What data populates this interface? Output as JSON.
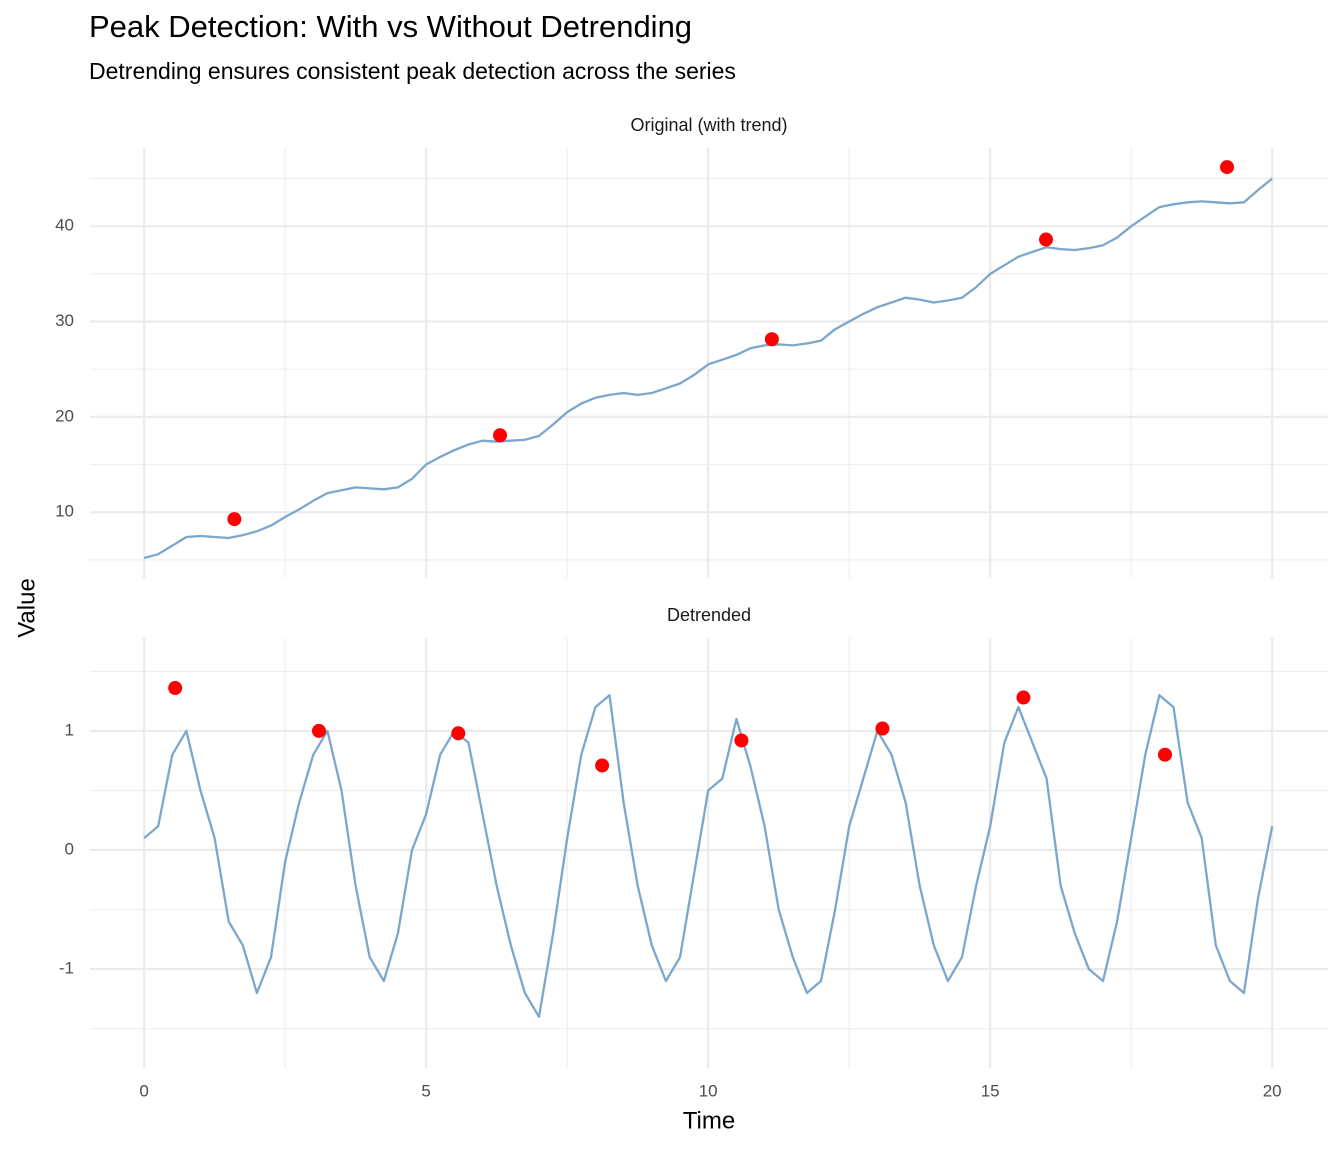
{
  "chart_data": {
    "type": "line",
    "title": "Peak Detection: With vs Without Detrending",
    "subtitle": "Detrending ensures consistent peak detection across the series",
    "xlabel": "Time",
    "ylabel": "Value",
    "xlim": [
      -0.96,
      20.99
    ],
    "xticks": [
      0,
      5,
      10,
      15,
      20
    ],
    "grid": true,
    "x": [
      0,
      0.25,
      0.5,
      0.75,
      1,
      1.25,
      1.5,
      1.75,
      2,
      2.25,
      2.5,
      2.75,
      3,
      3.25,
      3.5,
      3.75,
      4,
      4.25,
      4.5,
      4.75,
      5,
      5.25,
      5.5,
      5.75,
      6,
      6.25,
      6.5,
      6.75,
      7,
      7.25,
      7.5,
      7.75,
      8,
      8.25,
      8.5,
      8.75,
      9,
      9.25,
      9.5,
      9.75,
      10,
      10.25,
      10.5,
      10.75,
      11,
      11.25,
      11.5,
      11.75,
      12,
      12.25,
      12.5,
      12.75,
      13,
      13.25,
      13.5,
      13.75,
      14,
      14.25,
      14.5,
      14.75,
      15,
      15.25,
      15.5,
      15.75,
      16,
      16.25,
      16.5,
      16.75,
      17,
      17.25,
      17.5,
      17.75,
      18,
      18.25,
      18.5,
      18.75,
      19,
      19.25,
      19.5,
      19.75,
      20
    ],
    "panels": [
      {
        "title": "Original (with trend)",
        "color": "#7ba7cc",
        "ylim": [
          3.1,
          48.2
        ],
        "yticks": [
          10,
          20,
          30,
          40
        ],
        "values": [
          5.2,
          5.6,
          6.5,
          7.4,
          7.5,
          7.4,
          7.3,
          7.6,
          8.0,
          8.6,
          9.5,
          10.3,
          11.2,
          12.0,
          12.3,
          12.6,
          12.5,
          12.4,
          12.6,
          13.5,
          15.0,
          15.8,
          16.5,
          17.1,
          17.5,
          17.4,
          17.5,
          17.6,
          18.0,
          19.2,
          20.5,
          21.4,
          22.0,
          22.3,
          22.5,
          22.3,
          22.5,
          23.0,
          23.5,
          24.4,
          25.5,
          26.0,
          26.5,
          27.2,
          27.5,
          27.6,
          27.5,
          27.7,
          28.0,
          29.2,
          30.0,
          30.8,
          31.5,
          32.0,
          32.5,
          32.3,
          32.0,
          32.2,
          32.5,
          33.6,
          35.0,
          35.9,
          36.8,
          37.3,
          37.8,
          37.6,
          37.5,
          37.7,
          38.0,
          38.8,
          40.0,
          41.0,
          42.0,
          42.3,
          42.5,
          42.6,
          42.5,
          42.4,
          42.5,
          43.8,
          45.0
        ],
        "peaks_color": "#ff0000",
        "peaks_x": [
          1.6,
          6.31,
          11.13,
          15.99,
          19.2
        ],
        "peaks_values": [
          9.27,
          18.07,
          28.14,
          38.6,
          46.2
        ]
      },
      {
        "title": "Detrended",
        "color": "#7ba7cc",
        "ylim": [
          -1.83,
          1.78
        ],
        "yticks": [
          -1,
          0,
          1
        ],
        "values": [
          0.1,
          0.2,
          0.8,
          1.0,
          0.5,
          0.1,
          -0.6,
          -0.8,
          -1.2,
          -0.9,
          -0.1,
          0.4,
          0.8,
          1.0,
          0.5,
          -0.3,
          -0.9,
          -1.1,
          -0.7,
          0.0,
          0.3,
          0.8,
          1.0,
          0.9,
          0.3,
          -0.3,
          -0.8,
          -1.2,
          -1.4,
          -0.7,
          0.1,
          0.8,
          1.2,
          1.3,
          0.4,
          -0.3,
          -0.8,
          -1.1,
          -0.9,
          -0.2,
          0.5,
          0.6,
          1.1,
          0.7,
          0.2,
          -0.5,
          -0.9,
          -1.2,
          -1.1,
          -0.5,
          0.2,
          0.6,
          1.0,
          0.8,
          0.4,
          -0.3,
          -0.8,
          -1.1,
          -0.9,
          -0.3,
          0.2,
          0.9,
          1.2,
          0.9,
          0.6,
          -0.3,
          -0.7,
          -1.0,
          -1.1,
          -0.6,
          0.1,
          0.8,
          1.3,
          1.2,
          0.4,
          0.1,
          -0.8,
          -1.1,
          -1.2,
          -0.4,
          0.2
        ],
        "peaks_color": "#ff0000",
        "peaks_x": [
          0.55,
          3.1,
          5.57,
          8.12,
          10.59,
          13.09,
          15.59,
          18.1
        ],
        "peaks_values": [
          1.36,
          1.0,
          0.98,
          0.71,
          0.92,
          1.02,
          1.28,
          0.8
        ]
      }
    ]
  }
}
